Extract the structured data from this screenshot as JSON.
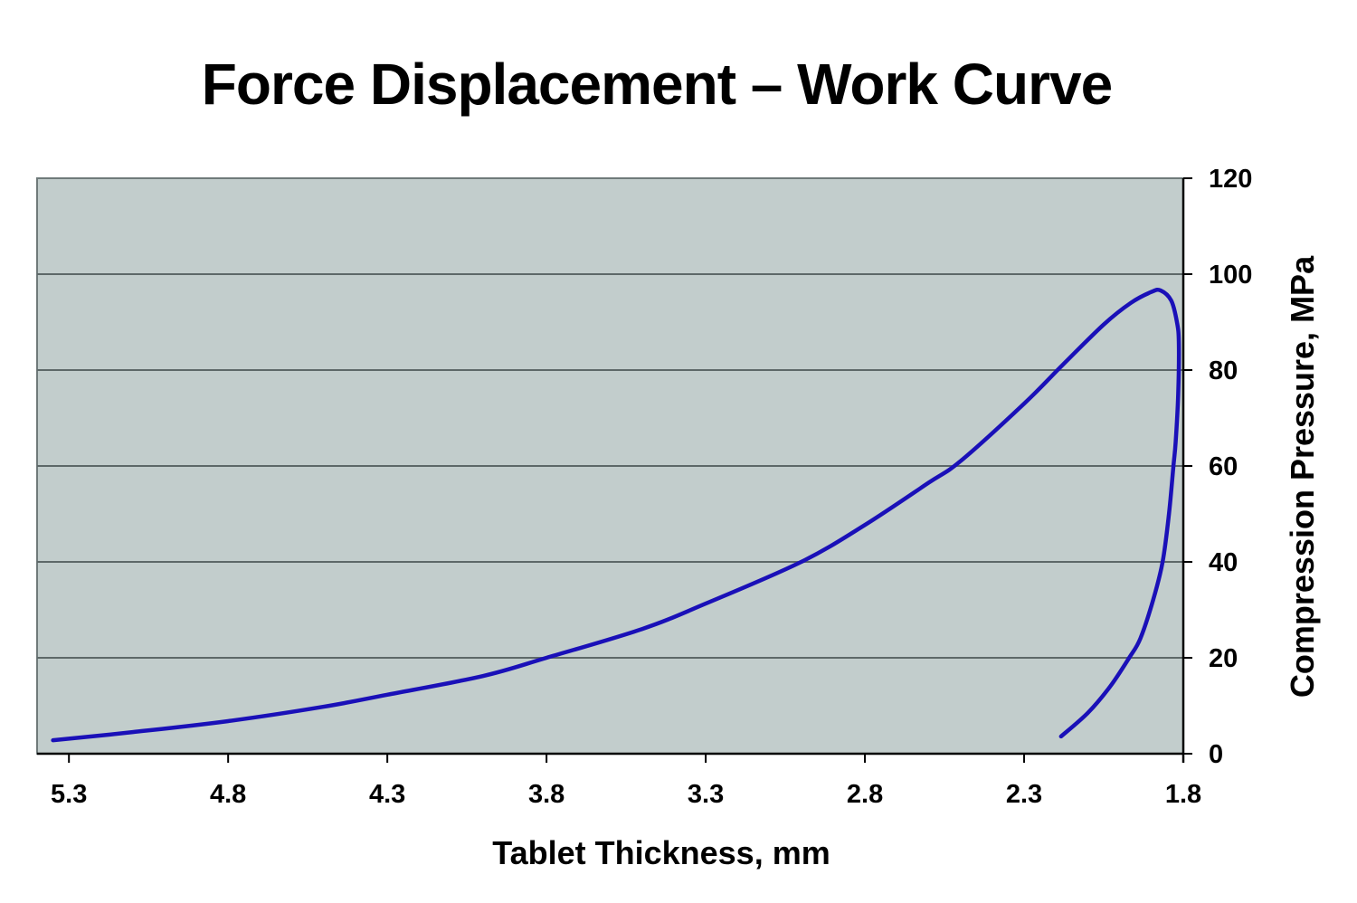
{
  "chart_data": {
    "type": "line",
    "title": "Force Displacement – Work Curve",
    "xlabel": "Tablet Thickness, mm",
    "ylabel": "Compression Pressure, MPa",
    "x_reversed": true,
    "xlim": [
      5.4,
      1.8
    ],
    "ylim": [
      0,
      120
    ],
    "xticks": [
      "5.3",
      "4.8",
      "4.3",
      "3.8",
      "3.3",
      "2.8",
      "2.3",
      "1.8"
    ],
    "yticks": [
      "0",
      "20",
      "40",
      "60",
      "80",
      "100",
      "120"
    ],
    "y_axis_position": "right",
    "grid": "horizontal",
    "background_color": "#c2cdcc",
    "line_color": "#1a10b8",
    "series": [
      {
        "points": [
          [
            5.35,
            2.8
          ],
          [
            5.1,
            4.5
          ],
          [
            4.8,
            6.8
          ],
          [
            4.5,
            9.8
          ],
          [
            4.3,
            12.3
          ],
          [
            4.0,
            16.2
          ],
          [
            3.8,
            20
          ],
          [
            3.5,
            26
          ],
          [
            3.3,
            31.3
          ],
          [
            3.0,
            40
          ],
          [
            2.8,
            47.7
          ],
          [
            2.6,
            56.5
          ],
          [
            2.5,
            61
          ],
          [
            2.3,
            73
          ],
          [
            2.18,
            81
          ],
          [
            2.05,
            89.5
          ],
          [
            1.965,
            94
          ],
          [
            1.9,
            96.3
          ],
          [
            1.871,
            96.6
          ],
          [
            1.838,
            94.5
          ],
          [
            1.82,
            90
          ],
          [
            1.814,
            85.7
          ],
          [
            1.816,
            75
          ],
          [
            1.824,
            65
          ],
          [
            1.831,
            60
          ],
          [
            1.845,
            50
          ],
          [
            1.865,
            40
          ],
          [
            1.895,
            32
          ],
          [
            1.935,
            24
          ],
          [
            1.97,
            20
          ],
          [
            2.03,
            14
          ],
          [
            2.1,
            8.5
          ],
          [
            2.184,
            3.6
          ]
        ]
      }
    ]
  }
}
